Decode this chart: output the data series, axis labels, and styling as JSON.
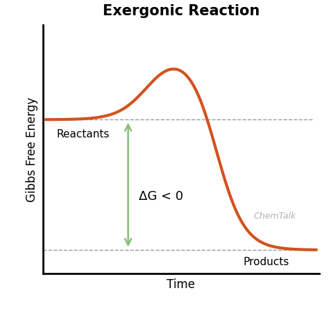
{
  "title": "Exergonic Reaction",
  "xlabel": "Time",
  "ylabel": "Gibbs Free Energy",
  "line_color": "#D2521E",
  "line_width": 3.0,
  "reactant_level": 0.62,
  "product_level": 0.07,
  "peak_level": 0.92,
  "reactants_label": "Reactants",
  "products_label": "Products",
  "delta_g_label": "ΔG < 0",
  "arrow_color": "#88BB77",
  "dashed_color": "#999999",
  "background_color": "#ffffff",
  "chemtalk_color": "#aaaaaa",
  "title_fontsize": 15,
  "label_fontsize": 11,
  "axis_label_fontsize": 12
}
